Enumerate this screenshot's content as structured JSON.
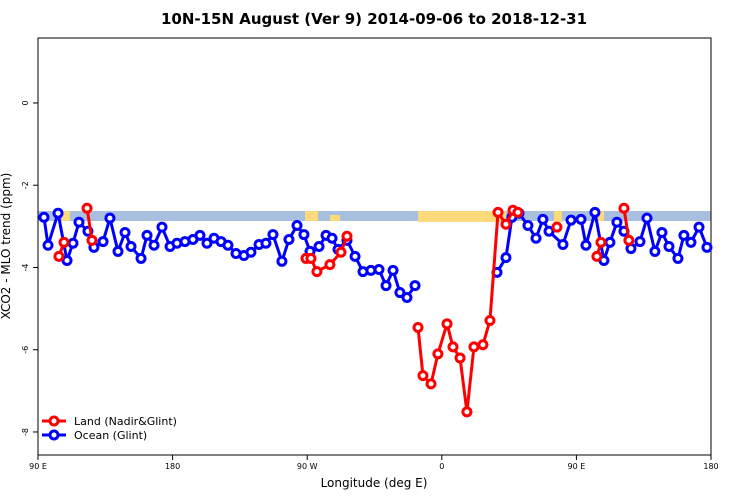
{
  "chart_data": {
    "type": "line",
    "title": "10N-15N August (Ver 9)   2014-09-06 to 2018-12-31",
    "x_label": "Longitude (deg E)",
    "y_label": "XCO2 - MLO trend (ppm)",
    "xlim": [
      90,
      540
    ],
    "ylim": [
      -8.56,
      1.58
    ],
    "xticks": [
      {
        "value": 90,
        "label": "90 E"
      },
      180,
      {
        "value": 270,
        "label": "90 W"
      },
      {
        "value": 360,
        "label": "0"
      },
      {
        "value": 450,
        "label": "90 E"
      },
      {
        "value": 540,
        "label": "180"
      }
    ],
    "yticks": [
      0,
      -2,
      -4,
      -6,
      -8
    ],
    "legend": "bottom-left",
    "series": [
      {
        "name": "Land (Nadir&Glint)",
        "color": "#ff0000",
        "x": [
          104.0,
          107.4,
          null,
          122.8,
          126.1,
          null,
          269.2,
          272.5,
          276.5,
          285.2,
          292.6,
          296.6,
          null,
          344.1,
          347.4,
          352.8,
          357.4,
          363.5,
          367.5,
          372.2,
          376.8,
          381.5,
          387.5,
          392.2,
          397.6,
          402.9,
          407.6,
          410.9,
          null,
          437.0,
          null,
          463.7,
          466.4,
          null,
          481.8,
          485.1
        ],
        "values": [
          -3.73,
          -3.39,
          null,
          -2.56,
          -3.34,
          null,
          -3.78,
          -3.78,
          -4.1,
          -3.93,
          -3.63,
          -3.24,
          null,
          -5.46,
          -6.63,
          -6.83,
          -6.1,
          -5.37,
          -5.93,
          -6.2,
          -7.51,
          -5.93,
          -5.88,
          -5.29,
          -2.66,
          -2.95,
          -2.61,
          -2.66,
          null,
          -3.02,
          null,
          -3.73,
          -3.39,
          null,
          -2.56,
          -3.34
        ]
      },
      {
        "name": "Ocean (Glint)",
        "color": "#0000ff",
        "x": [
          94.0,
          96.7,
          103.4,
          109.4,
          113.4,
          117.4,
          123.4,
          127.4,
          133.5,
          138.1,
          143.5,
          148.2,
          152.2,
          158.9,
          162.9,
          167.6,
          172.9,
          178.3,
          182.9,
          188.3,
          193.6,
          198.3,
          203.0,
          207.7,
          212.4,
          217.0,
          222.4,
          227.7,
          232.4,
          237.8,
          242.4,
          247.1,
          253.1,
          257.8,
          263.2,
          267.8,
          271.9,
          277.9,
          282.6,
          286.6,
          290.6,
          296.6,
          302.0,
          307.3,
          312.6,
          318.0,
          322.7,
          327.4,
          332.0,
          336.7,
          342.1,
          null,
          396.9,
          402.9,
          406.9,
          411.6,
          417.6,
          423.0,
          427.6,
          431.7,
          441.0,
          446.4,
          453.1,
          456.4,
          462.4,
          468.4,
          472.4,
          477.1,
          481.8,
          486.5,
          492.5,
          497.2,
          502.5,
          507.2,
          511.9,
          517.9,
          521.9,
          526.6,
          532.0,
          537.3
        ],
        "values": [
          -2.78,
          -3.46,
          -2.68,
          -3.83,
          -3.41,
          -2.9,
          -3.12,
          -3.51,
          -3.37,
          -2.8,
          -3.61,
          -3.15,
          -3.49,
          -3.78,
          -3.22,
          -3.46,
          -3.02,
          -3.49,
          -3.41,
          -3.37,
          -3.32,
          -3.22,
          -3.41,
          -3.29,
          -3.37,
          -3.46,
          -3.66,
          -3.71,
          -3.63,
          -3.44,
          -3.41,
          -3.2,
          -3.85,
          -3.32,
          -2.98,
          -3.2,
          -3.61,
          -3.49,
          -3.22,
          -3.29,
          -3.56,
          -3.34,
          -3.73,
          -4.1,
          -4.07,
          -4.05,
          -4.44,
          -4.07,
          -4.61,
          -4.73,
          -4.44,
          null,
          -4.12,
          -3.76,
          -2.78,
          -2.68,
          -2.98,
          -3.29,
          -2.83,
          -3.12,
          -3.44,
          -2.85,
          -2.83,
          -3.46,
          -2.66,
          -3.83,
          -3.39,
          -2.9,
          -3.12,
          -3.54,
          -3.37,
          -2.8,
          -3.61,
          -3.15,
          -3.49,
          -3.78,
          -3.22,
          -3.39,
          -3.02,
          -3.51
        ]
      }
    ]
  }
}
